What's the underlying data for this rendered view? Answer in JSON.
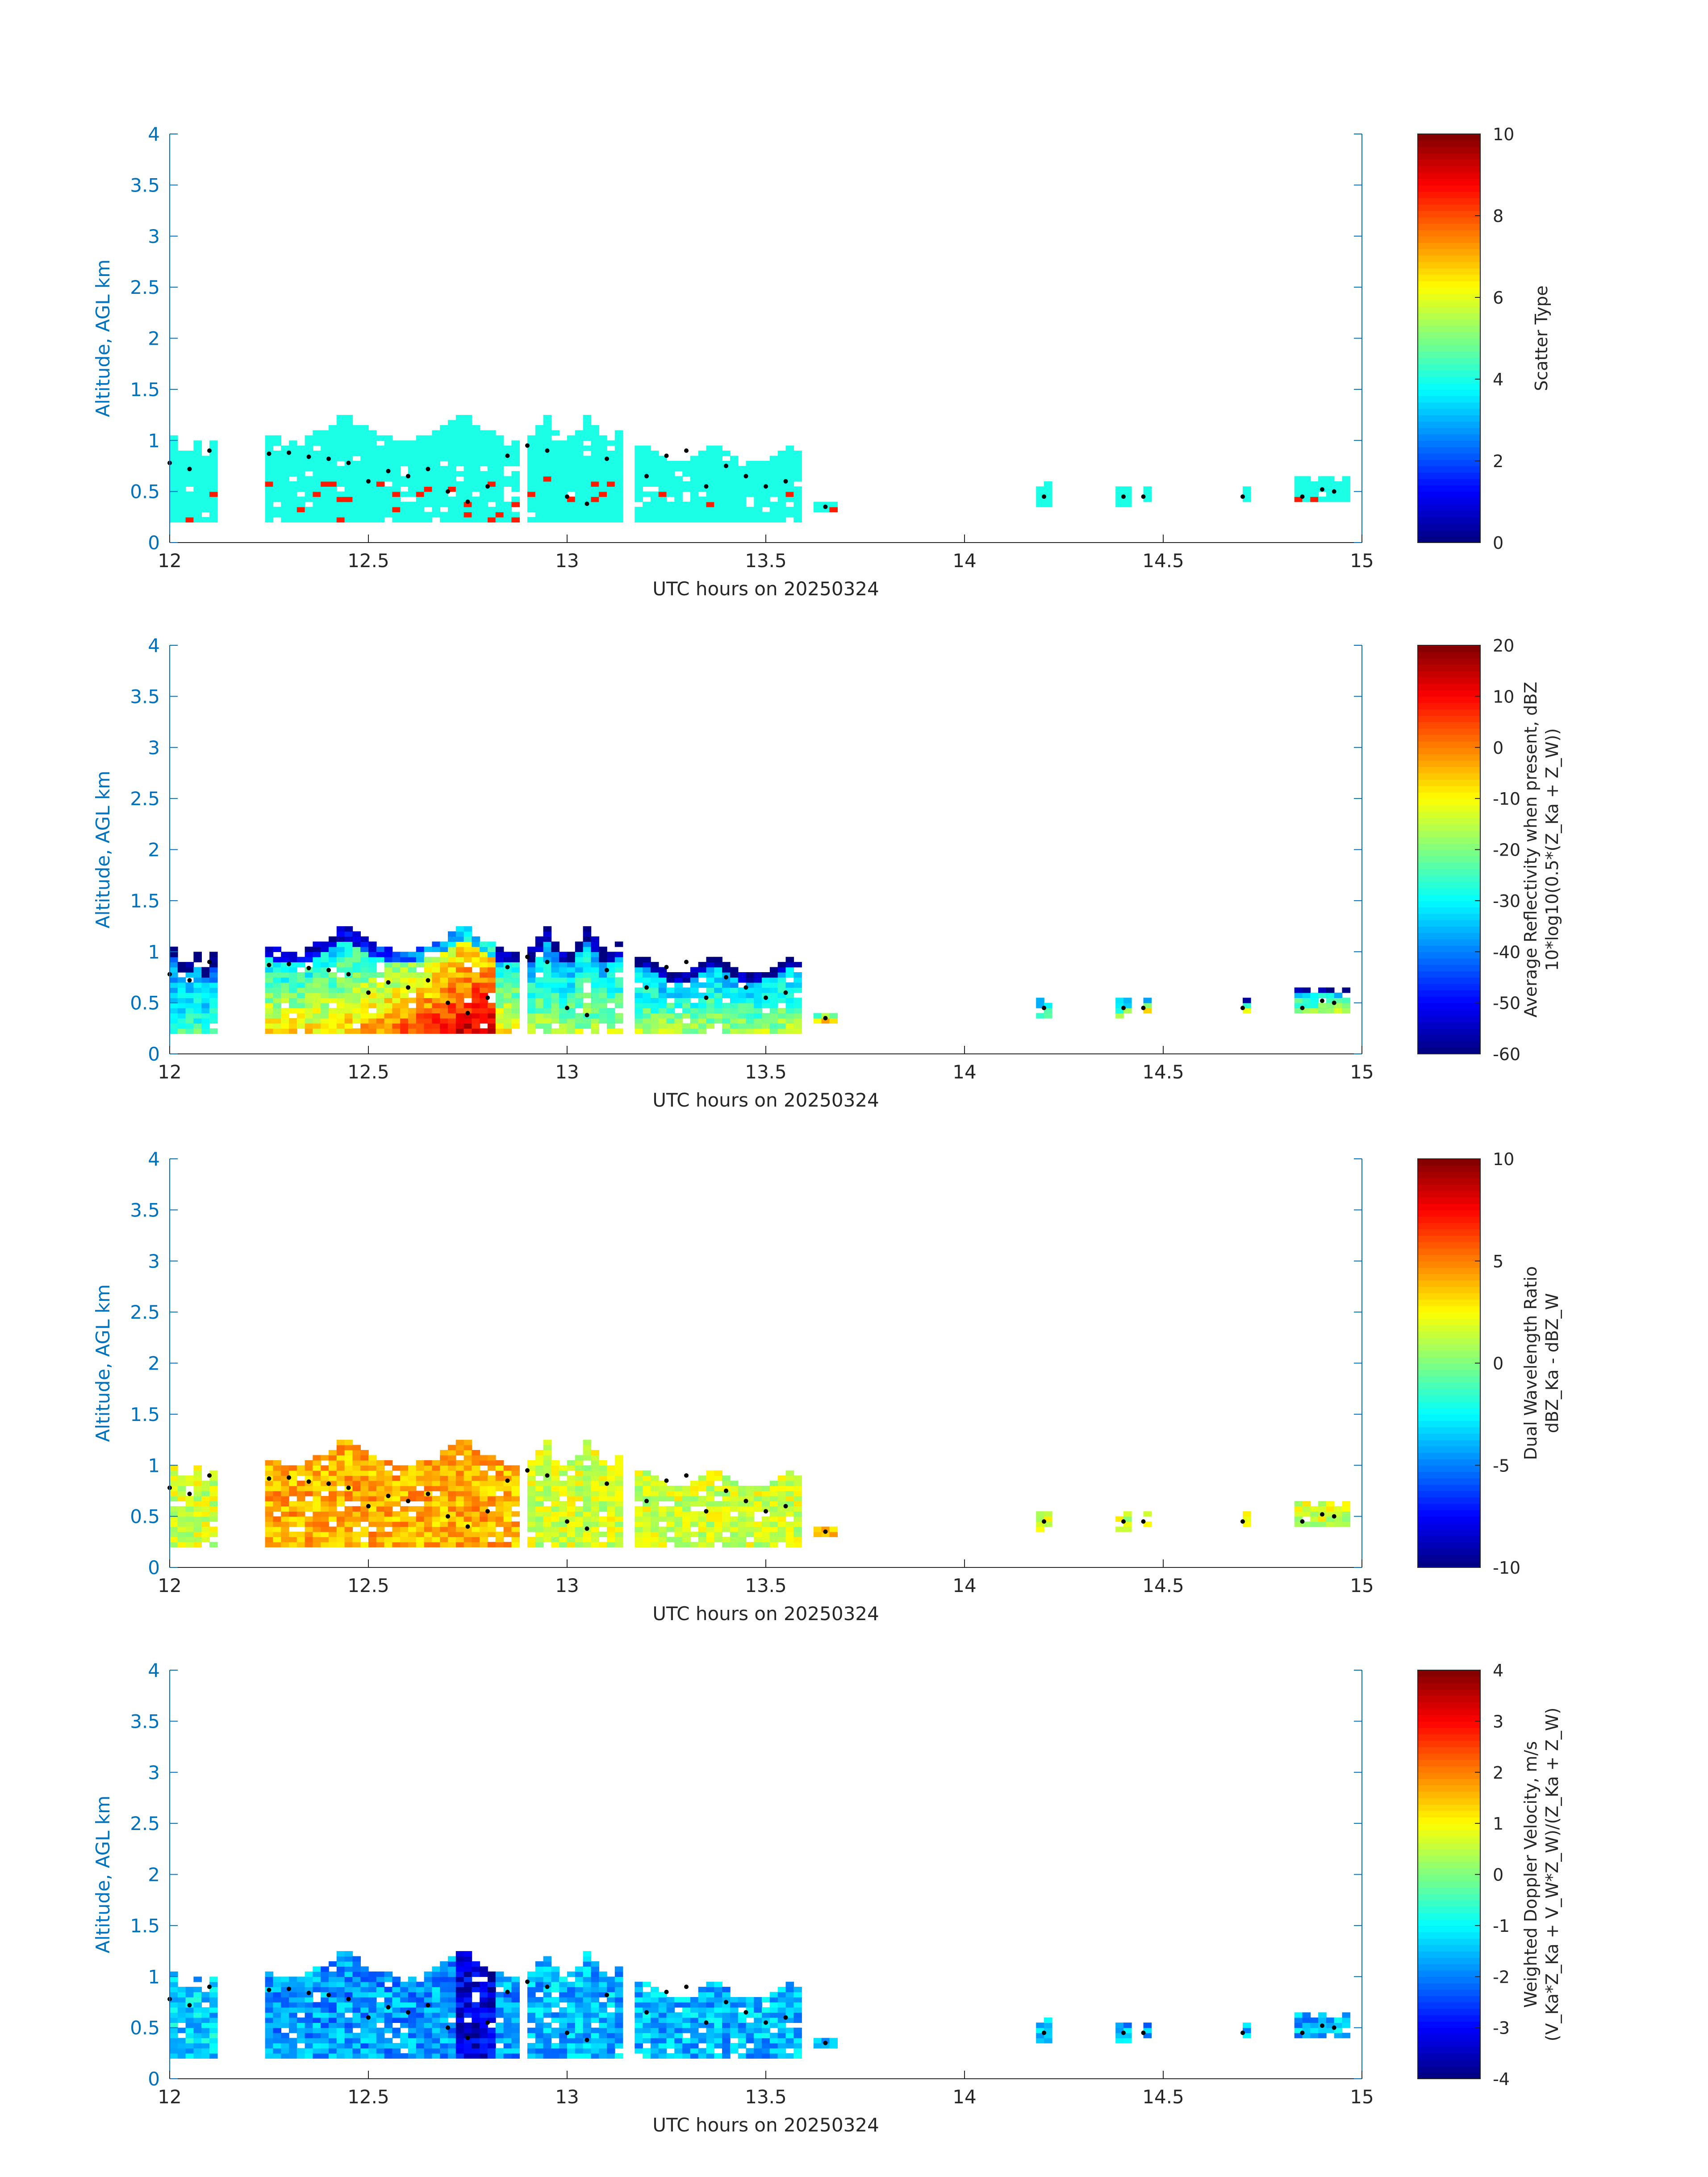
{
  "figure": {
    "background": "#ffffff",
    "axis_color": "#0072bd",
    "colormap": "jet",
    "date_label": "UTC hours on 20250324"
  },
  "chart_data": [
    {
      "type": "heatmap",
      "xlabel": "UTC hours on 20250324",
      "ylabel": "Altitude, AGL km",
      "xlim": [
        12,
        15
      ],
      "ylim": [
        0,
        4
      ],
      "xticks": [
        12,
        12.5,
        13,
        13.5,
        14,
        14.5,
        15
      ],
      "xtick_labels": [
        "12",
        "12.5",
        "13",
        "13.5",
        "14",
        "14.5",
        "15"
      ],
      "yticks": [
        0,
        0.5,
        1,
        1.5,
        2,
        2.5,
        3,
        3.5,
        4
      ],
      "ytick_labels": [
        "0",
        "0.5",
        "1",
        "1.5",
        "2",
        "2.5",
        "3",
        "3.5",
        "4"
      ],
      "colorbar": {
        "label_lines": [
          "Scatter Type"
        ],
        "clim": [
          0,
          10
        ],
        "ticks": [
          0,
          2,
          4,
          6,
          8,
          10
        ],
        "tick_labels": [
          "0",
          "2",
          "4",
          "6",
          "8",
          "10"
        ]
      },
      "field": "scatter_type",
      "grid": false
    },
    {
      "type": "heatmap",
      "xlabel": "UTC hours on 20250324",
      "ylabel": "Altitude, AGL km",
      "xlim": [
        12,
        15
      ],
      "ylim": [
        0,
        4
      ],
      "xticks": [
        12,
        12.5,
        13,
        13.5,
        14,
        14.5,
        15
      ],
      "xtick_labels": [
        "12",
        "12.5",
        "13",
        "13.5",
        "14",
        "14.5",
        "15"
      ],
      "yticks": [
        0,
        0.5,
        1,
        1.5,
        2,
        2.5,
        3,
        3.5,
        4
      ],
      "ytick_labels": [
        "0",
        "0.5",
        "1",
        "1.5",
        "2",
        "2.5",
        "3",
        "3.5",
        "4"
      ],
      "colorbar": {
        "label_lines": [
          "Average Reflectivity when present, dBZ",
          "10*log10(0.5*(Z_Ka + Z_W))"
        ],
        "clim": [
          -60,
          20
        ],
        "ticks": [
          -60,
          -50,
          -40,
          -30,
          -20,
          -10,
          0,
          10,
          20
        ],
        "tick_labels": [
          "-60",
          "-50",
          "-40",
          "-30",
          "-20",
          "-10",
          "0",
          "10",
          "20"
        ]
      },
      "field": "reflectivity",
      "grid": false
    },
    {
      "type": "heatmap",
      "xlabel": "UTC hours on 20250324",
      "ylabel": "Altitude, AGL km",
      "xlim": [
        12,
        15
      ],
      "ylim": [
        0,
        4
      ],
      "xticks": [
        12,
        12.5,
        13,
        13.5,
        14,
        14.5,
        15
      ],
      "xtick_labels": [
        "12",
        "12.5",
        "13",
        "13.5",
        "14",
        "14.5",
        "15"
      ],
      "yticks": [
        0,
        0.5,
        1,
        1.5,
        2,
        2.5,
        3,
        3.5,
        4
      ],
      "ytick_labels": [
        "0",
        "0.5",
        "1",
        "1.5",
        "2",
        "2.5",
        "3",
        "3.5",
        "4"
      ],
      "colorbar": {
        "label_lines": [
          "Dual Wavelength Ratio",
          "dBZ_Ka - dBZ_W"
        ],
        "clim": [
          -10,
          10
        ],
        "ticks": [
          -10,
          -5,
          0,
          5,
          10
        ],
        "tick_labels": [
          "-10",
          "-5",
          "0",
          "5",
          "10"
        ]
      },
      "field": "dwr",
      "grid": false
    },
    {
      "type": "heatmap",
      "xlabel": "UTC hours on 20250324",
      "ylabel": "Altitude, AGL km",
      "xlim": [
        12,
        15
      ],
      "ylim": [
        0,
        4
      ],
      "xticks": [
        12,
        12.5,
        13,
        13.5,
        14,
        14.5,
        15
      ],
      "xtick_labels": [
        "12",
        "12.5",
        "13",
        "13.5",
        "14",
        "14.5",
        "15"
      ],
      "yticks": [
        0,
        0.5,
        1,
        1.5,
        2,
        2.5,
        3,
        3.5,
        4
      ],
      "ytick_labels": [
        "0",
        "0.5",
        "1",
        "1.5",
        "2",
        "2.5",
        "3",
        "3.5",
        "4"
      ],
      "colorbar": {
        "label_lines": [
          "Weighted Doppler Velocity, m/s",
          "(V_Ka*Z_Ka + V_W*Z_W)/(Z_Ka + Z_W)"
        ],
        "clim": [
          -4,
          4
        ],
        "ticks": [
          -4,
          -3,
          -2,
          -1,
          0,
          1,
          2,
          3,
          4
        ],
        "tick_labels": [
          "-4",
          "-3",
          "-2",
          "-1",
          "0",
          "1",
          "2",
          "3",
          "4"
        ]
      },
      "field": "velocity",
      "grid": false
    }
  ],
  "cloud_segments": [
    {
      "t0": 12.0,
      "t1": 12.12,
      "z0": 0.2,
      "z1": 1.05,
      "ratio": 0.55,
      "note_dot": 0.85
    },
    {
      "t0": 12.24,
      "t1": 12.88,
      "z0": 0.2,
      "z1": 1.25,
      "ratio": 0.85
    },
    {
      "t0": 12.9,
      "t1": 13.13,
      "z0": 0.2,
      "z1": 1.25,
      "ratio": 0.7
    },
    {
      "t0": 13.17,
      "t1": 13.58,
      "z0": 0.2,
      "z1": 0.95,
      "ratio": 0.7
    },
    {
      "t0": 13.62,
      "t1": 13.68,
      "z0": 0.3,
      "z1": 0.4,
      "ratio": 0.9
    },
    {
      "t0": 14.18,
      "t1": 14.21,
      "z0": 0.35,
      "z1": 0.6,
      "ratio": 0.6
    },
    {
      "t0": 14.38,
      "t1": 14.42,
      "z0": 0.35,
      "z1": 0.55,
      "ratio": 0.7
    },
    {
      "t0": 14.45,
      "t1": 14.47,
      "z0": 0.4,
      "z1": 0.55,
      "ratio": 0.8
    },
    {
      "t0": 14.7,
      "t1": 14.72,
      "z0": 0.4,
      "z1": 0.55,
      "ratio": 0.8
    },
    {
      "t0": 14.83,
      "t1": 14.96,
      "z0": 0.4,
      "z1": 0.65,
      "ratio": 0.7
    }
  ],
  "cloud_base_km_series": {
    "t": [
      12.0,
      12.05,
      12.1,
      12.25,
      12.3,
      12.35,
      12.4,
      12.45,
      12.5,
      12.55,
      12.6,
      12.65,
      12.7,
      12.75,
      12.8,
      12.85,
      12.9,
      12.95,
      13.0,
      13.05,
      13.1,
      13.2,
      13.25,
      13.3,
      13.35,
      13.4,
      13.45,
      13.5,
      13.55,
      13.65,
      14.2,
      14.4,
      14.45,
      14.7,
      14.85,
      14.9,
      14.93
    ],
    "z": [
      0.78,
      0.72,
      0.9,
      0.87,
      0.88,
      0.84,
      0.82,
      0.78,
      0.6,
      0.7,
      0.65,
      0.72,
      0.5,
      0.4,
      0.55,
      0.85,
      0.95,
      0.9,
      0.45,
      0.38,
      0.82,
      0.65,
      0.85,
      0.9,
      0.55,
      0.75,
      0.65,
      0.55,
      0.6,
      0.35,
      0.45,
      0.45,
      0.45,
      0.45,
      0.45,
      0.52,
      0.5
    ]
  }
}
